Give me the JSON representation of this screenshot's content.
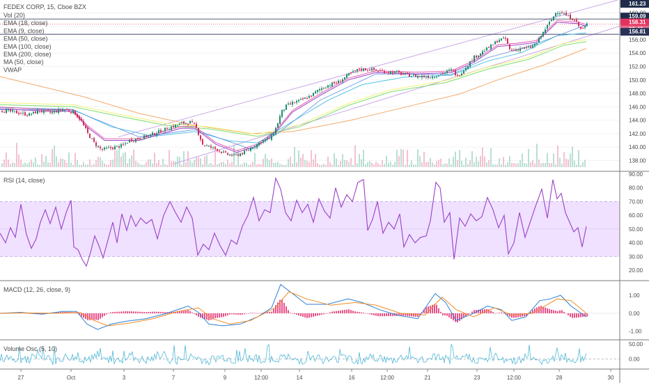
{
  "chart_data": [
    {
      "type": "candlestick",
      "symbol_line": "FEDEX CORP, 15, Cboe BZX",
      "indicators": [
        "Vol (20)",
        "EMA (18, close)",
        "EMA (9, close)",
        "EMA (50, close)",
        "EMA (100, close)",
        "EMA (200, close)",
        "MA (50, close)",
        "VWAP"
      ],
      "y_ticks": [
        "160.00",
        "158.00",
        "156.00",
        "154.00",
        "152.00",
        "150.00",
        "148.00",
        "146.00",
        "144.00",
        "142.00",
        "140.00",
        "138.00"
      ],
      "ylim": [
        137,
        161.5
      ],
      "price_labels": [
        "161.23",
        "159.09",
        "158.31",
        "02:42",
        "156.81"
      ],
      "close_path": [
        [
          0,
          145.5
        ],
        [
          20,
          145.2
        ],
        [
          40,
          144.8
        ],
        [
          55,
          145.4
        ],
        [
          70,
          145.1
        ],
        [
          90,
          145.6
        ],
        [
          105,
          145.2
        ],
        [
          115,
          144.0
        ],
        [
          125,
          142.0
        ],
        [
          135,
          140.5
        ],
        [
          145,
          139.6
        ],
        [
          160,
          139.9
        ],
        [
          175,
          140.2
        ],
        [
          185,
          141.0
        ],
        [
          200,
          141.3
        ],
        [
          215,
          141.8
        ],
        [
          230,
          142.4
        ],
        [
          245,
          143.0
        ],
        [
          260,
          143.5
        ],
        [
          272,
          143.7
        ],
        [
          280,
          143.1
        ],
        [
          290,
          140.4
        ],
        [
          300,
          140.0
        ],
        [
          310,
          139.7
        ],
        [
          322,
          139.0
        ],
        [
          335,
          138.7
        ],
        [
          350,
          139.2
        ],
        [
          365,
          140.2
        ],
        [
          378,
          141.0
        ],
        [
          388,
          141.3
        ],
        [
          396,
          143.0
        ],
        [
          403,
          145.2
        ],
        [
          410,
          146.1
        ],
        [
          420,
          146.6
        ],
        [
          432,
          147.0
        ],
        [
          445,
          147.6
        ],
        [
          458,
          148.6
        ],
        [
          470,
          149.2
        ],
        [
          485,
          149.7
        ],
        [
          500,
          150.8
        ],
        [
          515,
          151.6
        ],
        [
          528,
          151.6
        ],
        [
          540,
          151.4
        ],
        [
          555,
          151.2
        ],
        [
          568,
          151.1
        ],
        [
          580,
          150.8
        ],
        [
          595,
          150.6
        ],
        [
          610,
          150.5
        ],
        [
          620,
          150.5
        ],
        [
          635,
          151.0
        ],
        [
          648,
          151.5
        ],
        [
          656,
          150.5
        ],
        [
          668,
          151.9
        ],
        [
          680,
          153.4
        ],
        [
          692,
          154.2
        ],
        [
          705,
          155.1
        ],
        [
          715,
          156.0
        ],
        [
          725,
          156.1
        ],
        [
          732,
          154.3
        ],
        [
          745,
          154.7
        ],
        [
          760,
          154.8
        ],
        [
          770,
          155.5
        ],
        [
          782,
          157.6
        ],
        [
          792,
          159.1
        ],
        [
          798,
          160.2
        ],
        [
          805,
          160.1
        ],
        [
          815,
          159.4
        ],
        [
          825,
          159.0
        ],
        [
          832,
          157.6
        ],
        [
          838,
          157.7
        ],
        [
          842,
          158.3
        ]
      ],
      "ema18_path": [
        [
          0,
          145.7
        ],
        [
          60,
          145.4
        ],
        [
          105,
          145.3
        ],
        [
          125,
          143.0
        ],
        [
          150,
          141.0
        ],
        [
          200,
          141.0
        ],
        [
          260,
          142.8
        ],
        [
          280,
          142.8
        ],
        [
          310,
          140.4
        ],
        [
          340,
          139.2
        ],
        [
          370,
          140.2
        ],
        [
          396,
          142.2
        ],
        [
          420,
          145.2
        ],
        [
          460,
          147.7
        ],
        [
          500,
          150.0
        ],
        [
          540,
          151.1
        ],
        [
          600,
          150.9
        ],
        [
          648,
          151.1
        ],
        [
          680,
          152.6
        ],
        [
          715,
          155.0
        ],
        [
          740,
          155.2
        ],
        [
          770,
          155.6
        ],
        [
          800,
          158.6
        ],
        [
          830,
          158.4
        ],
        [
          842,
          158.0
        ]
      ],
      "ema50_path": [
        [
          0,
          145.9
        ],
        [
          105,
          145.6
        ],
        [
          160,
          143.0
        ],
        [
          220,
          141.6
        ],
        [
          280,
          142.3
        ],
        [
          330,
          140.9
        ],
        [
          370,
          140.6
        ],
        [
          420,
          143.8
        ],
        [
          470,
          146.9
        ],
        [
          520,
          149.3
        ],
        [
          580,
          150.4
        ],
        [
          648,
          150.7
        ],
        [
          700,
          152.8
        ],
        [
          750,
          154.1
        ],
        [
          800,
          156.6
        ],
        [
          842,
          157.0
        ]
      ],
      "ema100_path": [
        [
          0,
          146.3
        ],
        [
          105,
          146.0
        ],
        [
          170,
          144.6
        ],
        [
          240,
          143.2
        ],
        [
          300,
          142.7
        ],
        [
          370,
          141.6
        ],
        [
          430,
          143.0
        ],
        [
          500,
          146.2
        ],
        [
          560,
          148.2
        ],
        [
          640,
          149.6
        ],
        [
          700,
          151.6
        ],
        [
          760,
          153.1
        ],
        [
          810,
          155.2
        ],
        [
          842,
          155.7
        ]
      ],
      "ema200_path": [
        [
          0,
          150.5
        ],
        [
          60,
          149.0
        ],
        [
          120,
          147.5
        ],
        [
          200,
          145.0
        ],
        [
          280,
          143.2
        ],
        [
          360,
          142.0
        ],
        [
          420,
          142.3
        ],
        [
          500,
          143.9
        ],
        [
          580,
          145.9
        ],
        [
          660,
          147.9
        ],
        [
          720,
          150.2
        ],
        [
          780,
          152.2
        ],
        [
          842,
          154.7
        ]
      ],
      "vwap_path": [
        [
          0,
          145.6
        ],
        [
          105,
          145.5
        ],
        [
          200,
          141.5
        ],
        [
          280,
          142.6
        ],
        [
          360,
          139.7
        ],
        [
          400,
          142.1
        ],
        [
          460,
          147.0
        ],
        [
          540,
          150.9
        ],
        [
          648,
          150.8
        ],
        [
          700,
          153.3
        ],
        [
          760,
          155.0
        ],
        [
          842,
          158.2
        ]
      ],
      "channel": {
        "upper": [
          [
            170,
            141.5
          ],
          [
            890,
            162.0
          ]
        ],
        "lower": [
          [
            250,
            137.5
          ],
          [
            890,
            158.0
          ]
        ]
      },
      "horizontal_levels": [
        159.09,
        158.31,
        156.81
      ]
    },
    {
      "type": "line",
      "title": "RSI (14, close)",
      "y_ticks": [
        "90.00",
        "80.00",
        "70.00",
        "60.00",
        "50.00",
        "40.00",
        "30.00",
        "20.00"
      ],
      "ylim": [
        14,
        90
      ],
      "band": [
        30,
        70
      ],
      "path": [
        [
          0,
          47
        ],
        [
          8,
          40
        ],
        [
          15,
          51
        ],
        [
          22,
          44
        ],
        [
          30,
          68
        ],
        [
          38,
          46
        ],
        [
          45,
          36
        ],
        [
          52,
          43
        ],
        [
          58,
          55
        ],
        [
          65,
          64
        ],
        [
          72,
          54
        ],
        [
          80,
          66
        ],
        [
          88,
          50
        ],
        [
          95,
          62
        ],
        [
          102,
          71
        ],
        [
          106,
          37
        ],
        [
          112,
          35
        ],
        [
          118,
          28
        ],
        [
          124,
          23
        ],
        [
          130,
          33
        ],
        [
          136,
          45
        ],
        [
          142,
          38
        ],
        [
          148,
          29
        ],
        [
          155,
          42
        ],
        [
          162,
          55
        ],
        [
          168,
          40
        ],
        [
          175,
          61
        ],
        [
          182,
          49
        ],
        [
          188,
          60
        ],
        [
          195,
          52
        ],
        [
          202,
          58
        ],
        [
          210,
          54
        ],
        [
          218,
          57
        ],
        [
          226,
          43
        ],
        [
          235,
          60
        ],
        [
          244,
          70
        ],
        [
          252,
          62
        ],
        [
          260,
          55
        ],
        [
          268,
          66
        ],
        [
          276,
          58
        ],
        [
          284,
          31
        ],
        [
          292,
          39
        ],
        [
          300,
          35
        ],
        [
          308,
          47
        ],
        [
          316,
          38
        ],
        [
          324,
          31
        ],
        [
          332,
          42
        ],
        [
          340,
          39
        ],
        [
          348,
          52
        ],
        [
          356,
          60
        ],
        [
          364,
          73
        ],
        [
          372,
          56
        ],
        [
          380,
          64
        ],
        [
          388,
          62
        ],
        [
          396,
          87
        ],
        [
          403,
          79
        ],
        [
          410,
          62
        ],
        [
          418,
          56
        ],
        [
          426,
          71
        ],
        [
          434,
          62
        ],
        [
          442,
          68
        ],
        [
          450,
          55
        ],
        [
          458,
          72
        ],
        [
          466,
          63
        ],
        [
          474,
          58
        ],
        [
          482,
          80
        ],
        [
          490,
          66
        ],
        [
          498,
          75
        ],
        [
          506,
          70
        ],
        [
          514,
          84
        ],
        [
          522,
          86
        ],
        [
          528,
          49
        ],
        [
          535,
          57
        ],
        [
          542,
          70
        ],
        [
          550,
          47
        ],
        [
          558,
          55
        ],
        [
          566,
          50
        ],
        [
          574,
          61
        ],
        [
          580,
          37
        ],
        [
          588,
          46
        ],
        [
          596,
          40
        ],
        [
          604,
          44
        ],
        [
          612,
          45
        ],
        [
          618,
          56
        ],
        [
          626,
          84
        ],
        [
          632,
          80
        ],
        [
          638,
          55
        ],
        [
          646,
          62
        ],
        [
          652,
          28
        ],
        [
          660,
          58
        ],
        [
          668,
          52
        ],
        [
          676,
          61
        ],
        [
          684,
          56
        ],
        [
          692,
          59
        ],
        [
          700,
          73
        ],
        [
          708,
          64
        ],
        [
          716,
          51
        ],
        [
          724,
          60
        ],
        [
          730,
          32
        ],
        [
          738,
          40
        ],
        [
          746,
          62
        ],
        [
          754,
          44
        ],
        [
          762,
          56
        ],
        [
          770,
          68
        ],
        [
          778,
          79
        ],
        [
          786,
          58
        ],
        [
          794,
          86
        ],
        [
          800,
          72
        ],
        [
          806,
          76
        ],
        [
          812,
          62
        ],
        [
          818,
          55
        ],
        [
          824,
          48
        ],
        [
          830,
          51
        ],
        [
          836,
          37
        ],
        [
          842,
          52
        ]
      ]
    },
    {
      "type": "line",
      "title": "MACD (12, 26, close, 9)",
      "y_ticks": [
        "1.00",
        "0.00",
        "-1.00"
      ],
      "ylim": [
        -1.4,
        1.7
      ],
      "macd_path": [
        [
          0,
          0.0
        ],
        [
          30,
          0.05
        ],
        [
          60,
          -0.05
        ],
        [
          90,
          0.1
        ],
        [
          110,
          0.1
        ],
        [
          125,
          -0.6
        ],
        [
          140,
          -0.9
        ],
        [
          160,
          -0.6
        ],
        [
          180,
          -0.45
        ],
        [
          210,
          -0.3
        ],
        [
          240,
          0.0
        ],
        [
          270,
          0.4
        ],
        [
          285,
          0.05
        ],
        [
          300,
          -0.6
        ],
        [
          320,
          -0.7
        ],
        [
          345,
          -0.6
        ],
        [
          370,
          -0.2
        ],
        [
          390,
          0.3
        ],
        [
          403,
          1.6
        ],
        [
          420,
          1.1
        ],
        [
          440,
          0.5
        ],
        [
          470,
          0.5
        ],
        [
          500,
          0.8
        ],
        [
          520,
          0.6
        ],
        [
          545,
          0.2
        ],
        [
          570,
          -0.1
        ],
        [
          600,
          -0.3
        ],
        [
          625,
          1.1
        ],
        [
          640,
          0.6
        ],
        [
          655,
          -0.4
        ],
        [
          680,
          0.0
        ],
        [
          700,
          0.4
        ],
        [
          720,
          0.2
        ],
        [
          735,
          -0.4
        ],
        [
          755,
          -0.2
        ],
        [
          775,
          0.7
        ],
        [
          790,
          0.8
        ],
        [
          805,
          1.0
        ],
        [
          820,
          0.4
        ],
        [
          842,
          -0.2
        ]
      ],
      "signal_path": [
        [
          0,
          0.0
        ],
        [
          40,
          0.02
        ],
        [
          80,
          0.0
        ],
        [
          115,
          0.05
        ],
        [
          135,
          -0.4
        ],
        [
          155,
          -0.7
        ],
        [
          185,
          -0.55
        ],
        [
          220,
          -0.3
        ],
        [
          255,
          0.1
        ],
        [
          285,
          0.3
        ],
        [
          305,
          -0.3
        ],
        [
          330,
          -0.6
        ],
        [
          360,
          -0.4
        ],
        [
          395,
          0.3
        ],
        [
          415,
          1.2
        ],
        [
          440,
          0.8
        ],
        [
          475,
          0.45
        ],
        [
          510,
          0.6
        ],
        [
          540,
          0.45
        ],
        [
          575,
          0.0
        ],
        [
          610,
          -0.1
        ],
        [
          635,
          0.9
        ],
        [
          655,
          0.2
        ],
        [
          680,
          -0.2
        ],
        [
          710,
          0.3
        ],
        [
          735,
          -0.1
        ],
        [
          765,
          0.0
        ],
        [
          800,
          0.8
        ],
        [
          820,
          0.7
        ],
        [
          842,
          0.0
        ]
      ]
    },
    {
      "type": "line",
      "title": "Volume Osc (5, 10)",
      "y_ticks": [
        "50.00",
        "0.00"
      ],
      "ylim": [
        -30,
        60
      ]
    }
  ],
  "x_ticks": [
    "27",
    "Oct",
    "3",
    "7",
    "9",
    "12:00",
    "14",
    "16",
    "12:00",
    "21",
    "23",
    "12:00",
    "28",
    "30"
  ],
  "colors": {
    "candle_up": "#1a8a70",
    "candle_down": "#d02e58",
    "ema18": "#9b3fc8",
    "ema9": "#e2409a",
    "ema50": "#4fc3e8",
    "ema100": "#7cde6a",
    "ema200": "#f3a96a",
    "ma50": "#f2f27a",
    "vwap": "#5a8fe0",
    "rsi": "#9b3fc8",
    "rsi_band": "#efe1ff",
    "macd": "#2d7fd1",
    "signal": "#f08a24",
    "hist": "#e8508a",
    "volosc": "#4fb8d8",
    "label_dark": "#1f2d4a",
    "label_red": "#e5325d",
    "label_pink": "#e56a8a",
    "label_navy": "#2a3357"
  }
}
